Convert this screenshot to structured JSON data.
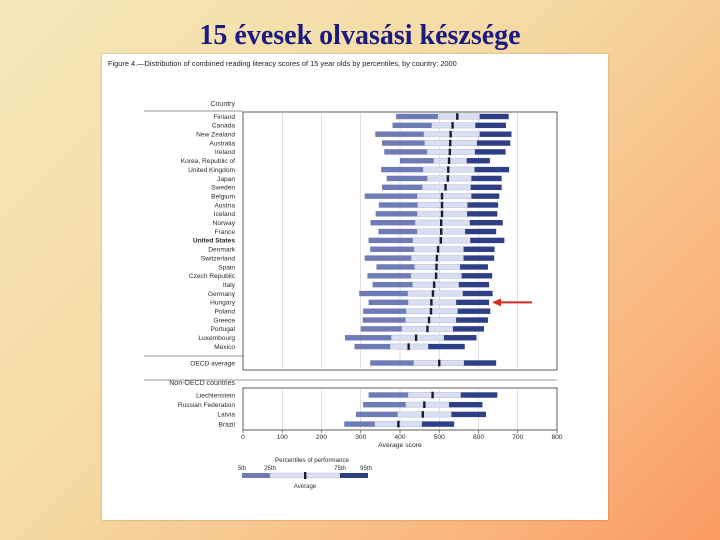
{
  "slide": {
    "title": "15 évesek olvasási készsége"
  },
  "figure": {
    "caption": "Figure 4.—Distribution of combined reading literacy scores of 15 year olds by percentiles, by country: 2000"
  },
  "colors": {
    "p5_25": "#6f7bb5",
    "p25_75": "#d9def0",
    "p75_95": "#2f3f86",
    "ci": "#1a1a2e",
    "arrow": "#d62b1f",
    "ink": "#333333"
  },
  "chart_data": {
    "type": "bar",
    "title": "",
    "xlabel": "Average score",
    "xlim": [
      0,
      800
    ],
    "xticks": [
      0,
      100,
      200,
      300,
      400,
      500,
      600,
      700,
      800
    ],
    "row_header": "Country",
    "subgroup_header": "Non-OECD countries",
    "highlighted_row": "Hungary",
    "rows": [
      {
        "country": "Finland",
        "group": "oecd",
        "bold": false,
        "p5": 390,
        "p25": 497,
        "mean": 546,
        "p75": 603,
        "p95": 677
      },
      {
        "country": "Canada",
        "group": "oecd",
        "bold": false,
        "p5": 381,
        "p25": 481,
        "mean": 534,
        "p75": 592,
        "p95": 670
      },
      {
        "country": "New Zealand",
        "group": "oecd",
        "bold": false,
        "p5": 337,
        "p25": 461,
        "mean": 529,
        "p75": 603,
        "p95": 684
      },
      {
        "country": "Australia",
        "group": "oecd",
        "bold": false,
        "p5": 354,
        "p25": 463,
        "mean": 528,
        "p75": 596,
        "p95": 681
      },
      {
        "country": "Ireland",
        "group": "oecd",
        "bold": false,
        "p5": 360,
        "p25": 469,
        "mean": 527,
        "p75": 591,
        "p95": 669
      },
      {
        "country": "Korea, Republic of",
        "group": "oecd",
        "bold": false,
        "p5": 400,
        "p25": 486,
        "mean": 525,
        "p75": 570,
        "p95": 629
      },
      {
        "country": "United Kingdom",
        "group": "oecd",
        "bold": false,
        "p5": 352,
        "p25": 459,
        "mean": 523,
        "p75": 590,
        "p95": 678
      },
      {
        "country": "Japan",
        "group": "oecd",
        "bold": false,
        "p5": 366,
        "p25": 470,
        "mean": 522,
        "p75": 582,
        "p95": 659
      },
      {
        "country": "Sweden",
        "group": "oecd",
        "bold": false,
        "p5": 354,
        "p25": 457,
        "mean": 516,
        "p75": 580,
        "p95": 659
      },
      {
        "country": "Belgium",
        "group": "oecd",
        "bold": false,
        "p5": 310,
        "p25": 444,
        "mean": 507,
        "p75": 582,
        "p95": 653
      },
      {
        "country": "Austria",
        "group": "oecd",
        "bold": false,
        "p5": 346,
        "p25": 445,
        "mean": 507,
        "p75": 572,
        "p95": 650
      },
      {
        "country": "Iceland",
        "group": "oecd",
        "bold": false,
        "p5": 338,
        "p25": 444,
        "mean": 507,
        "p75": 571,
        "p95": 648
      },
      {
        "country": "Norway",
        "group": "oecd",
        "bold": false,
        "p5": 325,
        "p25": 439,
        "mean": 505,
        "p75": 578,
        "p95": 662
      },
      {
        "country": "France",
        "group": "oecd",
        "bold": false,
        "p5": 345,
        "p25": 444,
        "mean": 505,
        "p75": 566,
        "p95": 645
      },
      {
        "country": "United States",
        "group": "oecd",
        "bold": true,
        "p5": 320,
        "p25": 433,
        "mean": 504,
        "p75": 579,
        "p95": 666
      },
      {
        "country": "Denmark",
        "group": "oecd",
        "bold": false,
        "p5": 324,
        "p25": 436,
        "mean": 497,
        "p75": 562,
        "p95": 641
      },
      {
        "country": "Switzerland",
        "group": "oecd",
        "bold": false,
        "p5": 310,
        "p25": 429,
        "mean": 494,
        "p75": 562,
        "p95": 640
      },
      {
        "country": "Spain",
        "group": "oecd",
        "bold": false,
        "p5": 340,
        "p25": 437,
        "mean": 493,
        "p75": 553,
        "p95": 624
      },
      {
        "country": "Czech Republic",
        "group": "oecd",
        "bold": false,
        "p5": 317,
        "p25": 428,
        "mean": 492,
        "p75": 557,
        "p95": 635
      },
      {
        "country": "Italy",
        "group": "oecd",
        "bold": false,
        "p5": 330,
        "p25": 432,
        "mean": 487,
        "p75": 550,
        "p95": 627
      },
      {
        "country": "Germany",
        "group": "oecd",
        "bold": false,
        "p5": 296,
        "p25": 420,
        "mean": 484,
        "p75": 560,
        "p95": 636
      },
      {
        "country": "Hungary",
        "group": "oecd",
        "bold": false,
        "p5": 320,
        "p25": 421,
        "mean": 480,
        "p75": 543,
        "p95": 627
      },
      {
        "country": "Poland",
        "group": "oecd",
        "bold": false,
        "p5": 306,
        "p25": 416,
        "mean": 479,
        "p75": 547,
        "p95": 630
      },
      {
        "country": "Greece",
        "group": "oecd",
        "bold": false,
        "p5": 305,
        "p25": 414,
        "mean": 474,
        "p75": 543,
        "p95": 624
      },
      {
        "country": "Portugal",
        "group": "oecd",
        "bold": false,
        "p5": 300,
        "p25": 405,
        "mean": 470,
        "p75": 535,
        "p95": 614
      },
      {
        "country": "Luxembourg",
        "group": "oecd",
        "bold": false,
        "p5": 260,
        "p25": 378,
        "mean": 441,
        "p75": 512,
        "p95": 595
      },
      {
        "country": "Mexico",
        "group": "oecd",
        "bold": false,
        "p5": 284,
        "p25": 375,
        "mean": 422,
        "p75": 472,
        "p95": 565
      },
      {
        "country": "OECD average",
        "group": "avg",
        "bold": false,
        "p5": 324,
        "p25": 435,
        "mean": 500,
        "p75": 563,
        "p95": 645
      },
      {
        "country": "Liechtenstein",
        "group": "nonoecd",
        "bold": false,
        "p5": 320,
        "p25": 421,
        "mean": 483,
        "p75": 555,
        "p95": 648
      },
      {
        "country": "Russian Federation",
        "group": "nonoecd",
        "bold": false,
        "p5": 306,
        "p25": 415,
        "mean": 462,
        "p75": 525,
        "p95": 610
      },
      {
        "country": "Latvia",
        "group": "nonoecd",
        "bold": false,
        "p5": 288,
        "p25": 394,
        "mean": 458,
        "p75": 531,
        "p95": 619
      },
      {
        "country": "Brazil",
        "group": "nonoecd",
        "bold": false,
        "p5": 258,
        "p25": 336,
        "mean": 396,
        "p75": 456,
        "p95": 538
      }
    ],
    "legend": {
      "title": "Percentiles of performance",
      "labels": [
        "5th",
        "25th",
        "75th",
        "95th"
      ],
      "mean_label": "Average"
    }
  }
}
